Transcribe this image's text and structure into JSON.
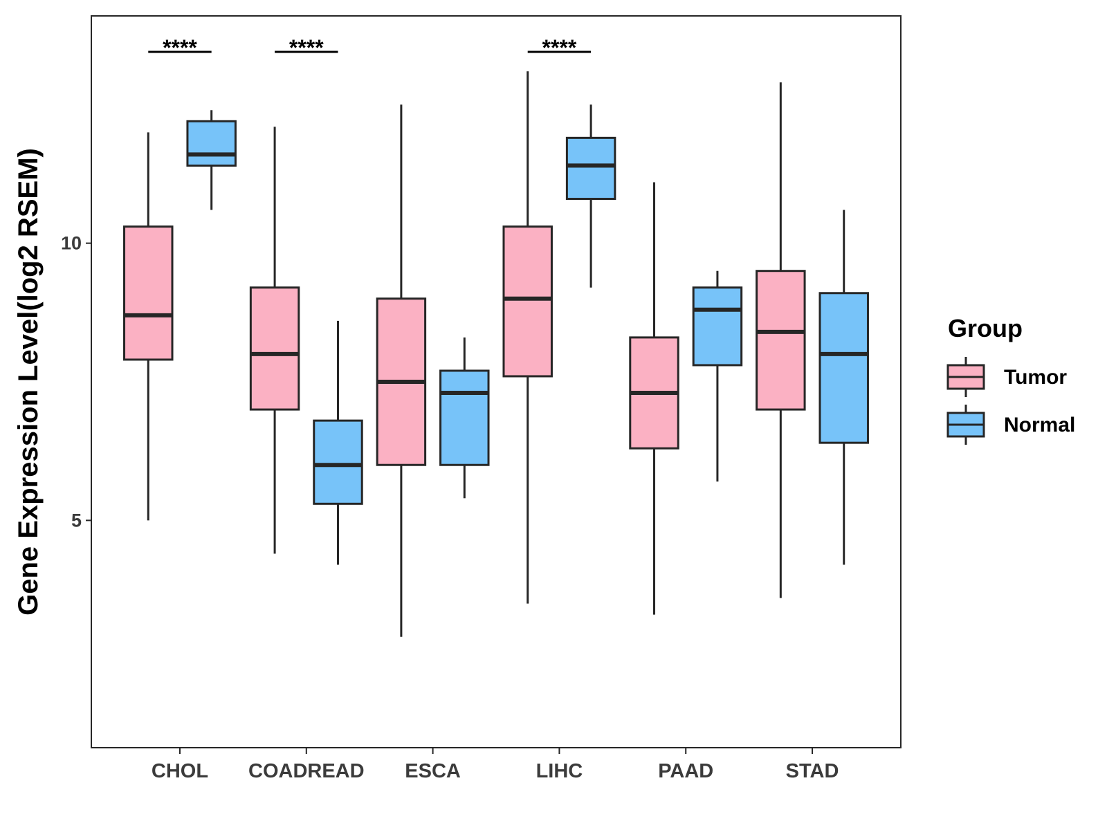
{
  "chart_data": {
    "type": "boxplot",
    "title": "",
    "xlabel": "",
    "ylabel": "Gene Expression Level(log2 RSEM)",
    "ylim": [
      0.9,
      14.1
    ],
    "yticks": [
      5,
      10
    ],
    "grid": false,
    "categories": [
      "CHOL",
      "COADREAD",
      "ESCA",
      "LIHC",
      "PAAD",
      "STAD"
    ],
    "legend": {
      "title": "Group",
      "position": "right",
      "entries": [
        "Tumor",
        "Normal"
      ]
    },
    "colors": {
      "Tumor": "#FBB1C3",
      "Normal": "#77C3F9",
      "outline": "#262626"
    },
    "series": [
      {
        "name": "Tumor",
        "boxes": [
          {
            "category": "CHOL",
            "min": 5.0,
            "q1": 7.9,
            "median": 8.7,
            "q3": 10.3,
            "max": 12.0
          },
          {
            "category": "COADREAD",
            "min": 4.4,
            "q1": 7.0,
            "median": 8.0,
            "q3": 9.2,
            "max": 12.1
          },
          {
            "category": "ESCA",
            "min": 2.9,
            "q1": 6.0,
            "median": 7.5,
            "q3": 9.0,
            "max": 12.5
          },
          {
            "category": "LIHC",
            "min": 3.5,
            "q1": 7.6,
            "median": 9.0,
            "q3": 10.3,
            "max": 13.1
          },
          {
            "category": "PAAD",
            "min": 3.3,
            "q1": 6.3,
            "median": 7.3,
            "q3": 8.3,
            "max": 11.1
          },
          {
            "category": "STAD",
            "min": 3.6,
            "q1": 7.0,
            "median": 8.4,
            "q3": 9.5,
            "max": 12.9
          }
        ]
      },
      {
        "name": "Normal",
        "boxes": [
          {
            "category": "CHOL",
            "min": 10.6,
            "q1": 11.4,
            "median": 11.6,
            "q3": 12.2,
            "max": 12.4
          },
          {
            "category": "COADREAD",
            "min": 4.2,
            "q1": 5.3,
            "median": 6.0,
            "q3": 6.8,
            "max": 8.6
          },
          {
            "category": "ESCA",
            "min": 5.4,
            "q1": 6.0,
            "median": 7.3,
            "q3": 7.7,
            "max": 8.3
          },
          {
            "category": "LIHC",
            "min": 9.2,
            "q1": 10.8,
            "median": 11.4,
            "q3": 11.9,
            "max": 12.5
          },
          {
            "category": "PAAD",
            "min": 5.7,
            "q1": 7.8,
            "median": 8.8,
            "q3": 9.2,
            "max": 9.5
          },
          {
            "category": "STAD",
            "min": 4.2,
            "q1": 6.4,
            "median": 8.0,
            "q3": 9.1,
            "max": 10.6
          }
        ]
      }
    ],
    "significance": [
      {
        "category": "CHOL",
        "label": "****"
      },
      {
        "category": "COADREAD",
        "label": "****"
      },
      {
        "category": "LIHC",
        "label": "****"
      }
    ]
  }
}
